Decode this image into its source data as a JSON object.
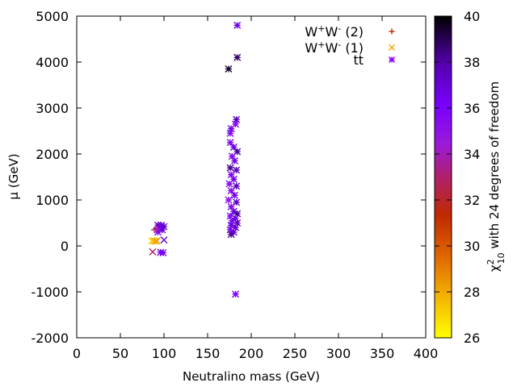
{
  "chart_data": {
    "type": "scatter",
    "xlabel": "Neutralino mass (GeV)",
    "ylabel": "μ (GeV)",
    "xlim": [
      0,
      400
    ],
    "ylim": [
      -2000,
      5000
    ],
    "xticks": [
      "0",
      "50",
      "100",
      "150",
      "200",
      "250",
      "300",
      "350",
      "400"
    ],
    "yticks": [
      "-2000",
      "-1000",
      "0",
      "1000",
      "2000",
      "3000",
      "4000",
      "5000"
    ],
    "colorbar": {
      "label_main": "χ",
      "label_sup": "2",
      "label_sub": "10",
      "label_rest": " with 24 degrees of freedom",
      "range": [
        26,
        40
      ],
      "ticks": [
        "26",
        "28",
        "30",
        "32",
        "34",
        "36",
        "38",
        "40"
      ],
      "palette": [
        "#000000",
        "#5500b0",
        "#7a00ff",
        "#9b1ad8",
        "#b0206a",
        "#c02a00",
        "#e06800",
        "#f5b800",
        "#ffff00"
      ]
    },
    "legend": {
      "position": "top-right",
      "entries": [
        {
          "label_base": "W",
          "sup1": "+",
          "mid": "W",
          "sup2": "-",
          "suffix": " (2)",
          "marker": "plus",
          "color": "#c42000"
        },
        {
          "label_base": "W",
          "sup1": "+",
          "mid": "W",
          "sup2": "-",
          "suffix": " (1)",
          "marker": "cross",
          "color": "#f0a800"
        },
        {
          "label_base": "tt",
          "sup1": "",
          "mid": "",
          "sup2": "",
          "suffix": "",
          "marker": "star",
          "color": "#8a00ff"
        }
      ]
    },
    "series": [
      {
        "name": "tt",
        "marker": "star",
        "points": [
          {
            "x": 184,
            "y": 4800,
            "chi2": 37
          },
          {
            "x": 184,
            "y": 4100,
            "chi2": 39
          },
          {
            "x": 174,
            "y": 3850,
            "chi2": 39.5
          },
          {
            "x": 183,
            "y": 2750,
            "chi2": 38
          },
          {
            "x": 182,
            "y": 2650,
            "chi2": 36
          },
          {
            "x": 177,
            "y": 2550,
            "chi2": 37
          },
          {
            "x": 176,
            "y": 2450,
            "chi2": 36
          },
          {
            "x": 176,
            "y": 2250,
            "chi2": 36
          },
          {
            "x": 180,
            "y": 2150,
            "chi2": 37
          },
          {
            "x": 184,
            "y": 2050,
            "chi2": 38.5
          },
          {
            "x": 178,
            "y": 1950,
            "chi2": 36
          },
          {
            "x": 181,
            "y": 1850,
            "chi2": 37
          },
          {
            "x": 176,
            "y": 1700,
            "chi2": 38.5
          },
          {
            "x": 183,
            "y": 1650,
            "chi2": 38
          },
          {
            "x": 177,
            "y": 1550,
            "chi2": 36
          },
          {
            "x": 180,
            "y": 1450,
            "chi2": 37
          },
          {
            "x": 175,
            "y": 1350,
            "chi2": 36
          },
          {
            "x": 183,
            "y": 1300,
            "chi2": 38
          },
          {
            "x": 177,
            "y": 1200,
            "chi2": 36
          },
          {
            "x": 181,
            "y": 1100,
            "chi2": 37
          },
          {
            "x": 174,
            "y": 1000,
            "chi2": 35.5
          },
          {
            "x": 183,
            "y": 950,
            "chi2": 38
          },
          {
            "x": 177,
            "y": 850,
            "chi2": 36
          },
          {
            "x": 180,
            "y": 750,
            "chi2": 37
          },
          {
            "x": 184,
            "y": 700,
            "chi2": 38.5
          },
          {
            "x": 176,
            "y": 650,
            "chi2": 36
          },
          {
            "x": 182,
            "y": 600,
            "chi2": 37
          },
          {
            "x": 178,
            "y": 550,
            "chi2": 36.5
          },
          {
            "x": 184,
            "y": 500,
            "chi2": 38
          },
          {
            "x": 177,
            "y": 450,
            "chi2": 37
          },
          {
            "x": 182,
            "y": 400,
            "chi2": 38
          },
          {
            "x": 176,
            "y": 350,
            "chi2": 36
          },
          {
            "x": 180,
            "y": 300,
            "chi2": 37
          },
          {
            "x": 177,
            "y": 250,
            "chi2": 38.5
          },
          {
            "x": 182,
            "y": -1050,
            "chi2": 36.5
          },
          {
            "x": 93,
            "y": 450,
            "chi2": 38
          },
          {
            "x": 97,
            "y": 450,
            "chi2": 37
          },
          {
            "x": 95,
            "y": 380,
            "chi2": 36.5
          },
          {
            "x": 100,
            "y": 420,
            "chi2": 38
          },
          {
            "x": 98,
            "y": 350,
            "chi2": 37.5
          },
          {
            "x": 93,
            "y": 300,
            "chi2": 36
          },
          {
            "x": 96,
            "y": -140,
            "chi2": 36.5
          },
          {
            "x": 99,
            "y": -150,
            "chi2": 37
          }
        ]
      },
      {
        "name": "W+W- (1)",
        "marker": "cross",
        "points": [
          {
            "x": 86,
            "y": 110,
            "chi2": 27
          },
          {
            "x": 88,
            "y": 110,
            "chi2": 27.5
          },
          {
            "x": 90,
            "y": 100,
            "chi2": 28
          },
          {
            "x": 92,
            "y": 110,
            "chi2": 28.5
          },
          {
            "x": 87,
            "y": -130,
            "chi2": 33
          },
          {
            "x": 100,
            "y": 130,
            "chi2": 37
          }
        ]
      },
      {
        "name": "W+W- (2)",
        "marker": "plus",
        "points": [
          {
            "x": 89,
            "y": 350,
            "chi2": 33
          },
          {
            "x": 91,
            "y": 380,
            "chi2": 34
          }
        ]
      }
    ]
  }
}
